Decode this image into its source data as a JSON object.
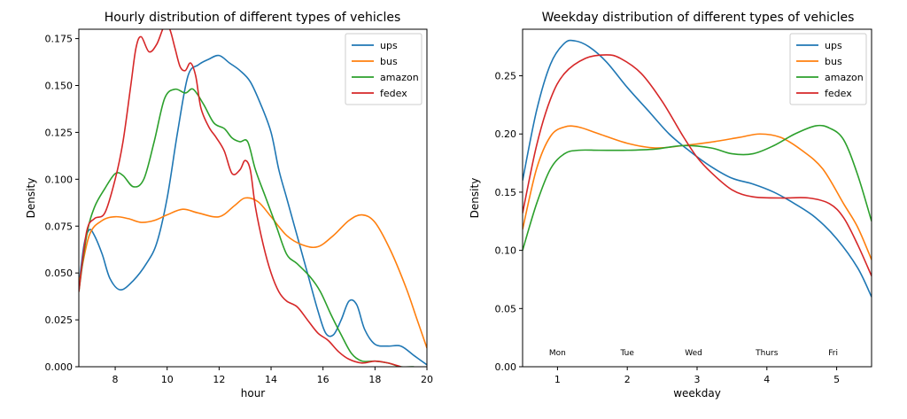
{
  "colors": {
    "ups": "#1f77b4",
    "bus": "#ff7f0e",
    "amazon": "#2ca02c",
    "fedex": "#d62728"
  },
  "chart_data": [
    {
      "type": "line",
      "title": "Hourly distribution of different types of vehicles",
      "xlabel": "hour",
      "ylabel": "Density",
      "xlim": [
        6.6,
        20
      ],
      "ylim": [
        0,
        0.18
      ],
      "xticks": [
        8,
        10,
        12,
        14,
        16,
        18,
        20
      ],
      "yticks": [
        0.0,
        0.025,
        0.05,
        0.075,
        0.1,
        0.125,
        0.15,
        0.175
      ],
      "ytick_labels": [
        "0.000",
        "0.025",
        "0.050",
        "0.075",
        "0.100",
        "0.125",
        "0.150",
        "0.175"
      ],
      "legend_position": "top-right",
      "grid": false,
      "series": [
        {
          "name": "ups",
          "color": "#1f77b4",
          "points": [
            [
              6.6,
              0.043
            ],
            [
              6.8,
              0.065
            ],
            [
              7.0,
              0.073
            ],
            [
              7.2,
              0.07
            ],
            [
              7.5,
              0.06
            ],
            [
              7.8,
              0.047
            ],
            [
              8.2,
              0.041
            ],
            [
              8.7,
              0.046
            ],
            [
              9.2,
              0.055
            ],
            [
              9.6,
              0.066
            ],
            [
              10.0,
              0.09
            ],
            [
              10.4,
              0.125
            ],
            [
              10.8,
              0.155
            ],
            [
              11.2,
              0.161
            ],
            [
              11.6,
              0.164
            ],
            [
              12.0,
              0.166
            ],
            [
              12.4,
              0.162
            ],
            [
              12.8,
              0.158
            ],
            [
              13.2,
              0.152
            ],
            [
              13.6,
              0.14
            ],
            [
              14.0,
              0.125
            ],
            [
              14.3,
              0.105
            ],
            [
              14.6,
              0.09
            ],
            [
              15.0,
              0.07
            ],
            [
              15.4,
              0.05
            ],
            [
              15.8,
              0.03
            ],
            [
              16.1,
              0.018
            ],
            [
              16.4,
              0.017
            ],
            [
              16.7,
              0.025
            ],
            [
              17.0,
              0.035
            ],
            [
              17.3,
              0.033
            ],
            [
              17.6,
              0.02
            ],
            [
              18.0,
              0.012
            ],
            [
              18.5,
              0.011
            ],
            [
              19.0,
              0.011
            ],
            [
              19.5,
              0.006
            ],
            [
              20.0,
              0.001
            ]
          ]
        },
        {
          "name": "bus",
          "color": "#ff7f0e",
          "points": [
            [
              6.6,
              0.044
            ],
            [
              7.0,
              0.07
            ],
            [
              7.5,
              0.078
            ],
            [
              8.0,
              0.08
            ],
            [
              8.5,
              0.079
            ],
            [
              9.0,
              0.077
            ],
            [
              9.5,
              0.078
            ],
            [
              10.0,
              0.081
            ],
            [
              10.6,
              0.084
            ],
            [
              11.2,
              0.082
            ],
            [
              12.0,
              0.08
            ],
            [
              12.6,
              0.086
            ],
            [
              13.0,
              0.09
            ],
            [
              13.5,
              0.088
            ],
            [
              14.0,
              0.08
            ],
            [
              14.6,
              0.07
            ],
            [
              15.2,
              0.065
            ],
            [
              15.8,
              0.064
            ],
            [
              16.4,
              0.07
            ],
            [
              17.0,
              0.078
            ],
            [
              17.5,
              0.081
            ],
            [
              18.0,
              0.077
            ],
            [
              18.6,
              0.062
            ],
            [
              19.2,
              0.042
            ],
            [
              19.6,
              0.026
            ],
            [
              20.0,
              0.01
            ]
          ]
        },
        {
          "name": "amazon",
          "color": "#2ca02c",
          "points": [
            [
              6.6,
              0.04
            ],
            [
              6.9,
              0.07
            ],
            [
              7.2,
              0.085
            ],
            [
              7.6,
              0.095
            ],
            [
              8.0,
              0.103
            ],
            [
              8.3,
              0.102
            ],
            [
              8.7,
              0.096
            ],
            [
              9.1,
              0.1
            ],
            [
              9.5,
              0.12
            ],
            [
              9.9,
              0.143
            ],
            [
              10.3,
              0.148
            ],
            [
              10.7,
              0.146
            ],
            [
              11.0,
              0.148
            ],
            [
              11.4,
              0.14
            ],
            [
              11.8,
              0.13
            ],
            [
              12.2,
              0.127
            ],
            [
              12.5,
              0.122
            ],
            [
              12.8,
              0.12
            ],
            [
              13.1,
              0.12
            ],
            [
              13.4,
              0.105
            ],
            [
              13.8,
              0.09
            ],
            [
              14.2,
              0.075
            ],
            [
              14.6,
              0.06
            ],
            [
              15.0,
              0.055
            ],
            [
              15.5,
              0.048
            ],
            [
              15.9,
              0.04
            ],
            [
              16.3,
              0.028
            ],
            [
              16.7,
              0.017
            ],
            [
              17.1,
              0.007
            ],
            [
              17.5,
              0.003
            ],
            [
              18.0,
              0.003
            ],
            [
              18.5,
              0.002
            ],
            [
              19.0,
              0.0
            ],
            [
              19.5,
              0.0
            ]
          ]
        },
        {
          "name": "fedex",
          "color": "#d62728",
          "points": [
            [
              6.6,
              0.04
            ],
            [
              6.9,
              0.072
            ],
            [
              7.2,
              0.079
            ],
            [
              7.6,
              0.082
            ],
            [
              8.0,
              0.1
            ],
            [
              8.3,
              0.12
            ],
            [
              8.6,
              0.15
            ],
            [
              8.8,
              0.17
            ],
            [
              9.0,
              0.176
            ],
            [
              9.3,
              0.168
            ],
            [
              9.6,
              0.172
            ],
            [
              9.9,
              0.182
            ],
            [
              10.1,
              0.18
            ],
            [
              10.3,
              0.17
            ],
            [
              10.5,
              0.16
            ],
            [
              10.7,
              0.158
            ],
            [
              10.9,
              0.162
            ],
            [
              11.1,
              0.155
            ],
            [
              11.3,
              0.138
            ],
            [
              11.6,
              0.128
            ],
            [
              11.9,
              0.122
            ],
            [
              12.2,
              0.115
            ],
            [
              12.5,
              0.103
            ],
            [
              12.8,
              0.105
            ],
            [
              13.0,
              0.11
            ],
            [
              13.2,
              0.105
            ],
            [
              13.4,
              0.085
            ],
            [
              13.7,
              0.065
            ],
            [
              14.0,
              0.05
            ],
            [
              14.3,
              0.04
            ],
            [
              14.6,
              0.035
            ],
            [
              15.0,
              0.032
            ],
            [
              15.4,
              0.025
            ],
            [
              15.8,
              0.018
            ],
            [
              16.2,
              0.014
            ],
            [
              16.6,
              0.008
            ],
            [
              17.0,
              0.004
            ],
            [
              17.5,
              0.002
            ],
            [
              18.0,
              0.003
            ],
            [
              18.5,
              0.002
            ],
            [
              19.0,
              0.0
            ]
          ]
        }
      ]
    },
    {
      "type": "line",
      "title": "Weekday distribution of different types of vehicles",
      "xlabel": "weekday",
      "ylabel": "Density",
      "xlim": [
        0.5,
        5.5
      ],
      "ylim": [
        0,
        0.29
      ],
      "xticks": [
        1,
        2,
        3,
        4,
        5
      ],
      "yticks": [
        0.0,
        0.05,
        0.1,
        0.15,
        0.2,
        0.25
      ],
      "ytick_labels": [
        "0.00",
        "0.05",
        "0.10",
        "0.15",
        "0.20",
        "0.25"
      ],
      "day_labels": [
        {
          "label": "Mon",
          "x": 1.0
        },
        {
          "label": "Tue",
          "x": 2.0
        },
        {
          "label": "Wed",
          "x": 2.95
        },
        {
          "label": "Thurs",
          "x": 4.0
        },
        {
          "label": "Fri",
          "x": 4.95
        }
      ],
      "day_label_y": 0.01,
      "legend_position": "top-right",
      "grid": false,
      "series": [
        {
          "name": "ups",
          "color": "#1f77b4",
          "points": [
            [
              0.5,
              0.16
            ],
            [
              0.7,
              0.22
            ],
            [
              0.9,
              0.26
            ],
            [
              1.1,
              0.278
            ],
            [
              1.25,
              0.28
            ],
            [
              1.45,
              0.275
            ],
            [
              1.7,
              0.262
            ],
            [
              2.0,
              0.24
            ],
            [
              2.3,
              0.22
            ],
            [
              2.6,
              0.2
            ],
            [
              2.9,
              0.185
            ],
            [
              3.2,
              0.172
            ],
            [
              3.5,
              0.162
            ],
            [
              3.8,
              0.157
            ],
            [
              4.1,
              0.15
            ],
            [
              4.4,
              0.14
            ],
            [
              4.7,
              0.128
            ],
            [
              5.0,
              0.11
            ],
            [
              5.3,
              0.085
            ],
            [
              5.5,
              0.06
            ]
          ]
        },
        {
          "name": "bus",
          "color": "#ff7f0e",
          "points": [
            [
              0.5,
              0.118
            ],
            [
              0.7,
              0.17
            ],
            [
              0.9,
              0.198
            ],
            [
              1.1,
              0.206
            ],
            [
              1.3,
              0.206
            ],
            [
              1.6,
              0.2
            ],
            [
              2.0,
              0.192
            ],
            [
              2.4,
              0.188
            ],
            [
              2.8,
              0.19
            ],
            [
              3.2,
              0.193
            ],
            [
              3.6,
              0.197
            ],
            [
              3.9,
              0.2
            ],
            [
              4.2,
              0.197
            ],
            [
              4.5,
              0.186
            ],
            [
              4.8,
              0.17
            ],
            [
              5.1,
              0.14
            ],
            [
              5.3,
              0.12
            ],
            [
              5.5,
              0.092
            ]
          ]
        },
        {
          "name": "amazon",
          "color": "#2ca02c",
          "points": [
            [
              0.5,
              0.1
            ],
            [
              0.7,
              0.14
            ],
            [
              0.9,
              0.17
            ],
            [
              1.1,
              0.183
            ],
            [
              1.3,
              0.186
            ],
            [
              1.6,
              0.186
            ],
            [
              2.0,
              0.186
            ],
            [
              2.4,
              0.187
            ],
            [
              2.8,
              0.19
            ],
            [
              3.2,
              0.188
            ],
            [
              3.5,
              0.183
            ],
            [
              3.8,
              0.183
            ],
            [
              4.1,
              0.19
            ],
            [
              4.4,
              0.2
            ],
            [
              4.7,
              0.207
            ],
            [
              4.9,
              0.205
            ],
            [
              5.1,
              0.195
            ],
            [
              5.3,
              0.165
            ],
            [
              5.5,
              0.125
            ]
          ]
        },
        {
          "name": "fedex",
          "color": "#d62728",
          "points": [
            [
              0.5,
              0.132
            ],
            [
              0.7,
              0.19
            ],
            [
              0.9,
              0.23
            ],
            [
              1.1,
              0.252
            ],
            [
              1.4,
              0.265
            ],
            [
              1.7,
              0.268
            ],
            [
              1.9,
              0.265
            ],
            [
              2.2,
              0.252
            ],
            [
              2.5,
              0.228
            ],
            [
              2.8,
              0.198
            ],
            [
              3.0,
              0.18
            ],
            [
              3.2,
              0.167
            ],
            [
              3.5,
              0.152
            ],
            [
              3.8,
              0.146
            ],
            [
              4.2,
              0.145
            ],
            [
              4.6,
              0.145
            ],
            [
              4.9,
              0.14
            ],
            [
              5.1,
              0.128
            ],
            [
              5.3,
              0.105
            ],
            [
              5.5,
              0.078
            ]
          ]
        }
      ]
    }
  ]
}
